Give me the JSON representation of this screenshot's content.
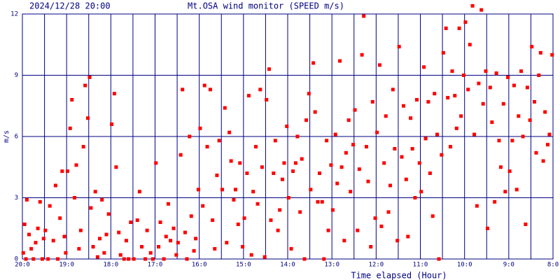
{
  "chart_data": {
    "type": "scatter",
    "timestamp": "2024/12/28 20:00",
    "title": "Mt.OSA wind monitor (SPEED m/s)",
    "x_label": "Time elapsed (Hour)",
    "y_label": "m/s",
    "color": "#ff0000",
    "grid": true,
    "xlim": [
      0,
      12
    ],
    "ylim": [
      0,
      12
    ],
    "yticks": [
      0,
      3,
      6,
      9,
      12
    ],
    "xticks": [
      {
        "value": 0,
        "label": "20:0"
      },
      {
        "value": 1,
        "label": "19:0"
      },
      {
        "value": 2,
        "label": "18:0"
      },
      {
        "value": 3,
        "label": "17:0"
      },
      {
        "value": 4,
        "label": "16:0"
      },
      {
        "value": 5,
        "label": "15:0"
      },
      {
        "value": 6,
        "label": "14:0"
      },
      {
        "value": 7,
        "label": "13:0"
      },
      {
        "value": 8,
        "label": "12:0"
      },
      {
        "value": 9,
        "label": "11:0"
      },
      {
        "value": 10,
        "label": "10:0"
      },
      {
        "value": 11,
        "label": "9:0"
      },
      {
        "value": 12,
        "label": "8:0"
      }
    ],
    "x": [
      0.02,
      0.05,
      0.08,
      0.1,
      0.15,
      0.2,
      0.25,
      0.3,
      0.35,
      0.4,
      0.45,
      0.48,
      0.52,
      0.58,
      0.62,
      0.7,
      0.75,
      0.8,
      0.85,
      0.9,
      0.95,
      0.98,
      1.02,
      1.08,
      1.12,
      1.18,
      1.22,
      1.28,
      1.32,
      1.38,
      1.42,
      1.48,
      1.52,
      1.55,
      1.6,
      1.65,
      1.7,
      1.75,
      1.8,
      1.85,
      1.9,
      1.95,
      2.02,
      2.08,
      2.12,
      2.18,
      2.22,
      2.3,
      2.35,
      2.4,
      2.45,
      2.52,
      2.6,
      2.65,
      2.7,
      2.78,
      2.82,
      2.9,
      2.95,
      3.02,
      3.08,
      3.12,
      3.2,
      3.25,
      3.3,
      3.35,
      3.42,
      3.48,
      3.52,
      3.58,
      3.62,
      3.68,
      3.72,
      3.78,
      3.82,
      3.88,
      3.92,
      3.98,
      4.02,
      4.08,
      4.12,
      4.18,
      4.25,
      4.3,
      4.35,
      4.4,
      4.45,
      4.52,
      4.58,
      4.62,
      4.68,
      4.72,
      4.78,
      4.82,
      4.88,
      4.92,
      4.98,
      5.02,
      5.08,
      5.12,
      5.18,
      5.22,
      5.28,
      5.32,
      5.38,
      5.42,
      5.48,
      5.52,
      5.58,
      5.62,
      5.68,
      5.72,
      5.78,
      5.82,
      5.88,
      5.92,
      5.98,
      6.02,
      6.08,
      6.12,
      6.18,
      6.22,
      6.28,
      6.32,
      6.38,
      6.42,
      6.48,
      6.52,
      6.58,
      6.62,
      6.68,
      6.72,
      6.78,
      6.82,
      6.88,
      6.92,
      6.98,
      7.02,
      7.08,
      7.12,
      7.18,
      7.22,
      7.28,
      7.32,
      7.38,
      7.42,
      7.48,
      7.52,
      7.58,
      7.62,
      7.68,
      7.72,
      7.78,
      7.82,
      7.88,
      7.92,
      7.98,
      8.02,
      8.08,
      8.12,
      8.18,
      8.22,
      8.28,
      8.32,
      8.38,
      8.42,
      8.48,
      8.52,
      8.58,
      8.62,
      8.68,
      8.72,
      8.78,
      8.82,
      8.88,
      8.92,
      8.98,
      9.02,
      9.08,
      9.12,
      9.18,
      9.22,
      9.28,
      9.32,
      9.38,
      9.42,
      9.48,
      9.52,
      9.58,
      9.62,
      9.68,
      9.72,
      9.78,
      9.82,
      9.88,
      9.92,
      9.98,
      10.02,
      10.08,
      10.12,
      10.18,
      10.22,
      10.28,
      10.32,
      10.38,
      10.42,
      10.48,
      10.52,
      10.58,
      10.62,
      10.68,
      10.72,
      10.78,
      10.82,
      10.88,
      10.92,
      10.98,
      11.02,
      11.08,
      11.12,
      11.18,
      11.22,
      11.28,
      11.32,
      11.38,
      11.42,
      11.48,
      11.52,
      11.58,
      11.62,
      11.68,
      11.72,
      11.78,
      11.82,
      11.88,
      11.92,
      11.98
    ],
    "values": [
      0.3,
      1.7,
      0,
      2.9,
      1.2,
      0.5,
      0,
      0.8,
      1.5,
      2.8,
      0,
      1.0,
      1.4,
      0,
      2.6,
      0.9,
      3.6,
      0,
      2.0,
      4.3,
      1.1,
      0.3,
      4.3,
      6.4,
      7.8,
      3.0,
      4.6,
      0.5,
      1.4,
      5.5,
      8.5,
      6.9,
      8.9,
      2.5,
      0.6,
      3.3,
      0.1,
      1.0,
      2.9,
      0.3,
      1.2,
      2.2,
      6.6,
      8.1,
      4.5,
      1.3,
      0.2,
      0,
      0.9,
      0,
      1.8,
      0,
      1.9,
      3.3,
      0.6,
      0,
      1.4,
      0.3,
      0,
      4.7,
      0.6,
      1.8,
      0,
      1.1,
      2.7,
      0.9,
      1.5,
      0.2,
      0.8,
      5.1,
      8.3,
      1.3,
      0,
      6.0,
      2.1,
      0.4,
      1.0,
      3.4,
      6.4,
      2.6,
      8.5,
      5.5,
      8.3,
      1.9,
      0.5,
      4.1,
      5.8,
      3.4,
      7.4,
      0.8,
      6.2,
      4.8,
      2.9,
      3.4,
      1.7,
      4.7,
      0.6,
      2.0,
      4.2,
      8.0,
      0.2,
      3.3,
      5.5,
      2.7,
      8.3,
      4.5,
      0.1,
      7.8,
      9.3,
      1.9,
      4.2,
      5.8,
      1.4,
      2.4,
      3.9,
      4.7,
      6.5,
      3.0,
      0.5,
      4.3,
      4.7,
      6.0,
      2.3,
      4.9,
      0,
      6.8,
      8.1,
      3.4,
      9.6,
      7.2,
      2.8,
      4.2,
      2.8,
      0,
      5.8,
      1.4,
      4.6,
      2.4,
      6.1,
      3.7,
      9.7,
      4.5,
      0.9,
      5.2,
      6.8,
      3.3,
      5.6,
      7.3,
      1.4,
      4.4,
      10.0,
      11.9,
      5.5,
      3.8,
      0.6,
      7.7,
      2.0,
      6.2,
      9.5,
      1.6,
      4.7,
      7.0,
      2.3,
      3.6,
      8.3,
      5.4,
      0.9,
      10.4,
      5.0,
      7.5,
      3.9,
      1.1,
      6.9,
      5.4,
      3.0,
      7.8,
      4.7,
      3.3,
      9.4,
      5.9,
      7.7,
      4.2,
      2.1,
      8.1,
      6.1,
      0,
      5.1,
      10.1,
      11.3,
      7.9,
      5.5,
      9.2,
      8.0,
      6.4,
      11.3,
      7.0,
      9.0,
      11.6,
      8.3,
      10.5,
      12.4,
      6.1,
      2.6,
      8.6,
      12.2,
      7.6,
      9.2,
      1.5,
      8.4,
      6.7,
      2.8,
      9.1,
      5.8,
      4.5,
      7.6,
      3.3,
      8.9,
      4.3,
      5.8,
      8.5,
      3.4,
      7.0,
      9.2,
      6.0,
      1.7,
      8.4,
      6.8,
      10.4,
      7.7,
      5.2,
      9.0,
      10.1,
      4.8,
      7.2,
      5.6,
      6.1,
      10.0
    ]
  }
}
